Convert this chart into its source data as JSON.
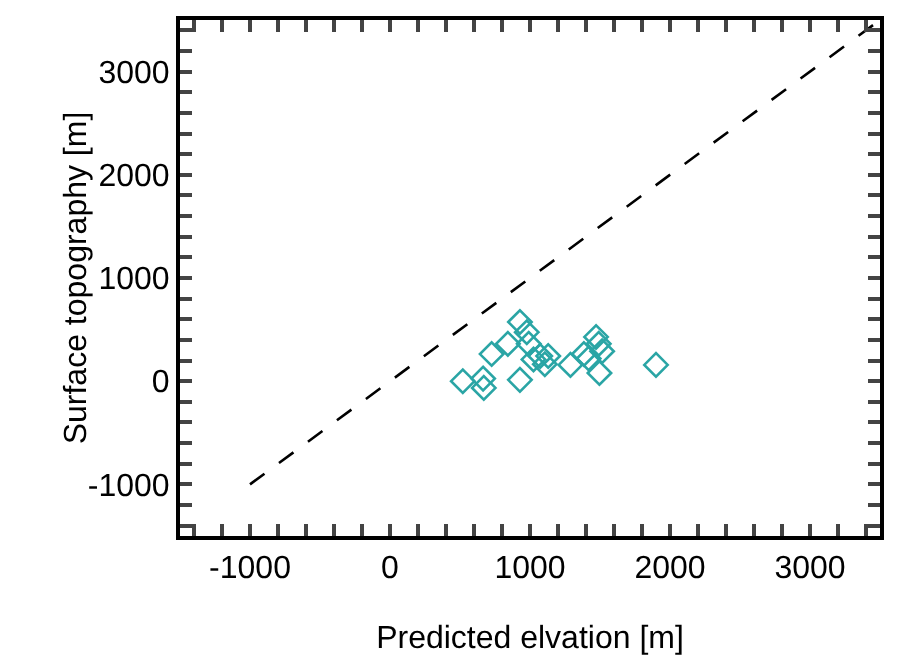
{
  "chart_data": {
    "type": "scatter",
    "xlabel": "Predicted elvation [m]",
    "ylabel": "Surface topography [m]",
    "xlim": [
      -1500,
      3500
    ],
    "ylim": [
      -1500,
      3500
    ],
    "xticks": [
      {
        "value": -1400,
        "label": null
      },
      {
        "value": -1200,
        "label": null
      },
      -1000,
      {
        "value": -800,
        "label": null
      },
      {
        "value": -600,
        "label": null
      },
      {
        "value": -400,
        "label": null
      },
      {
        "value": -200,
        "label": null
      },
      0,
      {
        "value": 200,
        "label": null
      },
      {
        "value": 400,
        "label": null
      },
      {
        "value": 600,
        "label": null
      },
      {
        "value": 800,
        "label": null
      },
      1000,
      {
        "value": 1200,
        "label": null
      },
      {
        "value": 1400,
        "label": null
      },
      {
        "value": 1600,
        "label": null
      },
      {
        "value": 1800,
        "label": null
      },
      2000,
      {
        "value": 2200,
        "label": null
      },
      {
        "value": 2400,
        "label": null
      },
      {
        "value": 2600,
        "label": null
      },
      {
        "value": 2800,
        "label": null
      },
      3000,
      {
        "value": 3200,
        "label": null
      },
      {
        "value": 3400,
        "label": null
      }
    ],
    "yticks": [
      {
        "value": -1400,
        "label": null
      },
      {
        "value": -1200,
        "label": null
      },
      -1000,
      {
        "value": -800,
        "label": null
      },
      {
        "value": -600,
        "label": null
      },
      {
        "value": -400,
        "label": null
      },
      {
        "value": -200,
        "label": null
      },
      0,
      {
        "value": 200,
        "label": null
      },
      {
        "value": 400,
        "label": null
      },
      {
        "value": 600,
        "label": null
      },
      {
        "value": 800,
        "label": null
      },
      1000,
      {
        "value": 1200,
        "label": null
      },
      {
        "value": 1400,
        "label": null
      },
      {
        "value": 1600,
        "label": null
      },
      {
        "value": 1800,
        "label": null
      },
      2000,
      {
        "value": 2200,
        "label": null
      },
      {
        "value": 2400,
        "label": null
      },
      {
        "value": 2600,
        "label": null
      },
      {
        "value": 2800,
        "label": null
      },
      3000,
      {
        "value": 3200,
        "label": null
      },
      {
        "value": 3400,
        "label": null
      }
    ],
    "series": [
      {
        "type": "line",
        "color": "#000000",
        "line_style": "dashed",
        "marker": "none",
        "x": [
          -1000,
          3500
        ],
        "values": [
          -1000,
          3500
        ]
      },
      {
        "color": "#2aa5a5",
        "marker": "diamond",
        "x": [
          520,
          665,
          670,
          726,
          842,
          928,
          928,
          977,
          991,
          1025,
          1073,
          1106,
          1130,
          1289,
          1385,
          1419,
          1472,
          1491,
          1496,
          1515,
          1900
        ],
        "values": [
          0,
          25,
          -65,
          263,
          362,
          574,
          13,
          475,
          362,
          211,
          244,
          165,
          244,
          158,
          264,
          220,
          429,
          362,
          79,
          290,
          158
        ]
      }
    ],
    "grid": false
  }
}
